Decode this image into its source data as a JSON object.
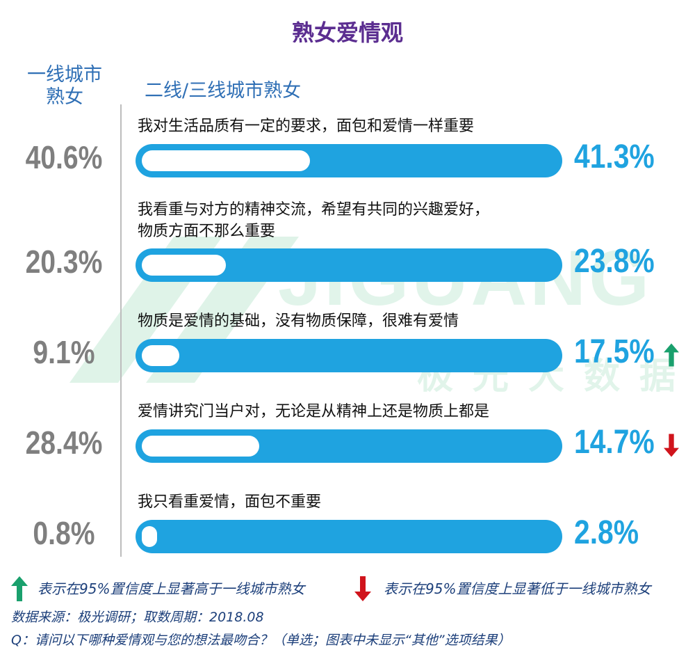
{
  "title": "熟女爱情观",
  "columns": {
    "left": "一线城市\n熟女",
    "right": "二线/三线城市熟女"
  },
  "watermark": {
    "brand": "JIGUANG",
    "sub": "极光大数据"
  },
  "chart_data": {
    "type": "bar",
    "orientation": "horizontal",
    "title": "熟女爱情观",
    "categories": [
      "我对生活品质有一定的要求，面包和爱情一样重要",
      "我看重与对方的精神交流，希望有共同的兴趣爱好，\n物质方面不那么重要",
      "物质是爱情的基础，没有物质保障，很难有爱情",
      "爱情讲究门当户对，无论是从精神上还是物质上都是",
      "我只看重爱情，面包不重要"
    ],
    "series": [
      {
        "name": "一线城市熟女",
        "values": [
          40.6,
          20.3,
          9.1,
          28.4,
          0.8
        ],
        "labels": [
          "40.6%",
          "20.3%",
          "9.1%",
          "28.4%",
          "0.8%"
        ],
        "color": "#ffffff"
      },
      {
        "name": "二线/三线城市熟女",
        "values": [
          41.3,
          23.8,
          17.5,
          14.7,
          2.8
        ],
        "labels": [
          "41.3%",
          "23.8%",
          "17.5%",
          "14.7%",
          "2.8%"
        ],
        "color": "#1fa3e0"
      }
    ],
    "significance": [
      "none",
      "none",
      "higher",
      "lower",
      "none"
    ],
    "xlim": [
      0,
      100
    ]
  },
  "legend": {
    "higher": "表示在95%置信度上显著高于一线城市熟女",
    "lower": "表示在95%置信度上显著低于一线城市熟女",
    "higher_color": "#1aa06d",
    "lower_color": "#d0141c"
  },
  "footer": {
    "source": "数据来源：极光调研；取数周期：2018.08",
    "question": "Q：请问以下哪种爱情观与您的想法最吻合？（单选；图表中未显示“其他”选项结果）"
  }
}
